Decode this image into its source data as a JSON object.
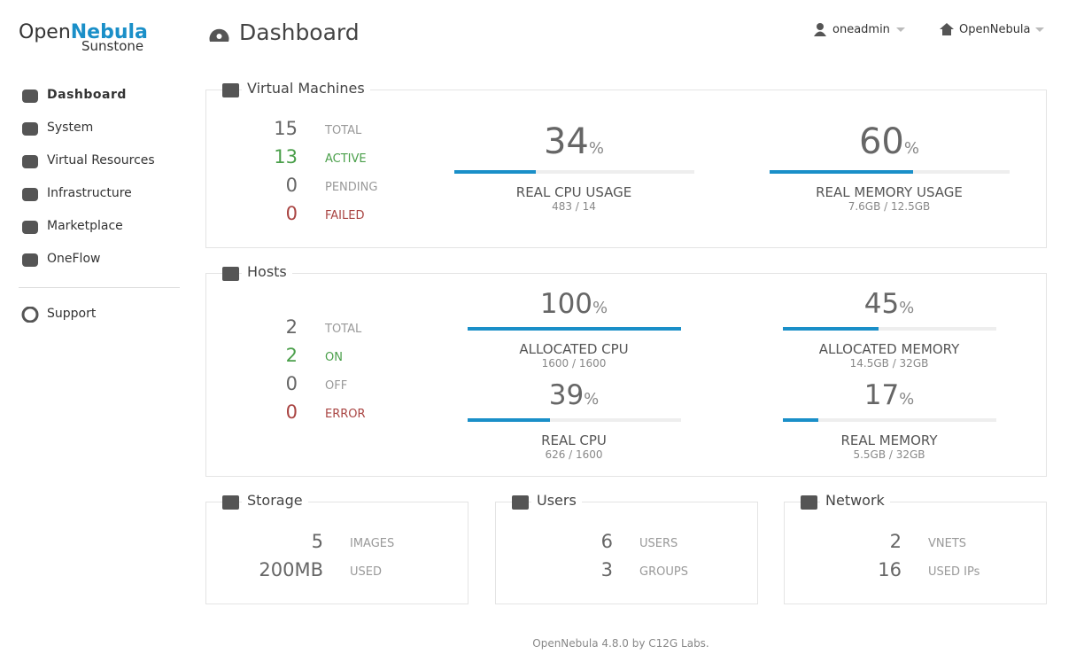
{
  "logo": {
    "brand_a": "Open",
    "brand_b": "Nebula",
    "sub": "Sunstone"
  },
  "nav": {
    "items": [
      "Dashboard",
      "System",
      "Virtual Resources",
      "Infrastructure",
      "Marketplace",
      "OneFlow"
    ],
    "support": "Support"
  },
  "header": {
    "title": "Dashboard",
    "user": "oneadmin",
    "zone": "OpenNebula"
  },
  "vms": {
    "title": "Virtual Machines",
    "stats": [
      {
        "value": 15,
        "label": "TOTAL"
      },
      {
        "value": 13,
        "label": "ACTIVE"
      },
      {
        "value": 0,
        "label": "PENDING"
      },
      {
        "value": 0,
        "label": "FAILED"
      }
    ],
    "gauges": [
      {
        "value": 34,
        "unit": "%",
        "label": "REAL CPU USAGE",
        "detail": "483 / 14"
      },
      {
        "value": 60,
        "unit": "%",
        "label": "REAL MEMORY USAGE",
        "detail": "7.6GB / 12.5GB"
      }
    ]
  },
  "hosts": {
    "title": "Hosts",
    "stats": [
      {
        "value": 2,
        "label": "TOTAL"
      },
      {
        "value": 2,
        "label": "ON"
      },
      {
        "value": 0,
        "label": "OFF"
      },
      {
        "value": 0,
        "label": "ERROR"
      }
    ],
    "gauges": [
      {
        "value": 100,
        "unit": "%",
        "label": "ALLOCATED CPU",
        "detail": "1600 / 1600"
      },
      {
        "value": 45,
        "unit": "%",
        "label": "ALLOCATED MEMORY",
        "detail": "14.5GB / 32GB"
      },
      {
        "value": 39,
        "unit": "%",
        "label": "REAL CPU",
        "detail": "626 / 1600"
      },
      {
        "value": 17,
        "unit": "%",
        "label": "REAL MEMORY",
        "detail": "5.5GB / 32GB"
      }
    ]
  },
  "storage": {
    "title": "Storage",
    "stats": [
      {
        "value": 5,
        "label": "IMAGES"
      },
      {
        "value": "200MB",
        "label": "USED"
      }
    ]
  },
  "users": {
    "title": "Users",
    "stats": [
      {
        "value": 6,
        "label": "USERS"
      },
      {
        "value": 3,
        "label": "GROUPS"
      }
    ]
  },
  "network": {
    "title": "Network",
    "stats": [
      {
        "value": 2,
        "label": "VNETS"
      },
      {
        "value": 16,
        "label": "USED IPs"
      }
    ]
  },
  "footer": "OpenNebula 4.8.0 by C12G Labs."
}
